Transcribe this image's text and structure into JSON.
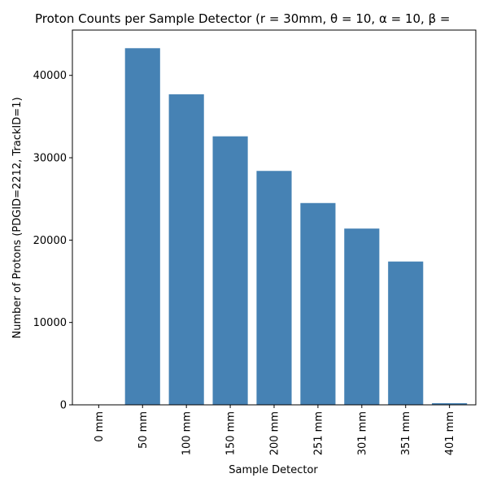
{
  "chart_data": {
    "type": "bar",
    "title": "Proton Counts per Sample Detector (r = 30mm, θ = 10, α = 10, β =",
    "xlabel": "Sample Detector",
    "ylabel": "Number of Protons (PDGID=2212, TrackID=1)",
    "categories": [
      "0 mm",
      "50 mm",
      "100 mm",
      "150 mm",
      "200 mm",
      "251 mm",
      "301 mm",
      "351 mm",
      "401 mm"
    ],
    "values": [
      0,
      43300,
      37700,
      32600,
      28400,
      24500,
      21400,
      17400,
      200
    ],
    "ylim": [
      0,
      45500
    ],
    "yticks": [
      0,
      10000,
      20000,
      30000,
      40000
    ],
    "ytick_labels": [
      "0",
      "10000",
      "20000",
      "30000",
      "40000"
    ],
    "bar_color": "#4682b4",
    "grid": false,
    "legend": "none"
  }
}
